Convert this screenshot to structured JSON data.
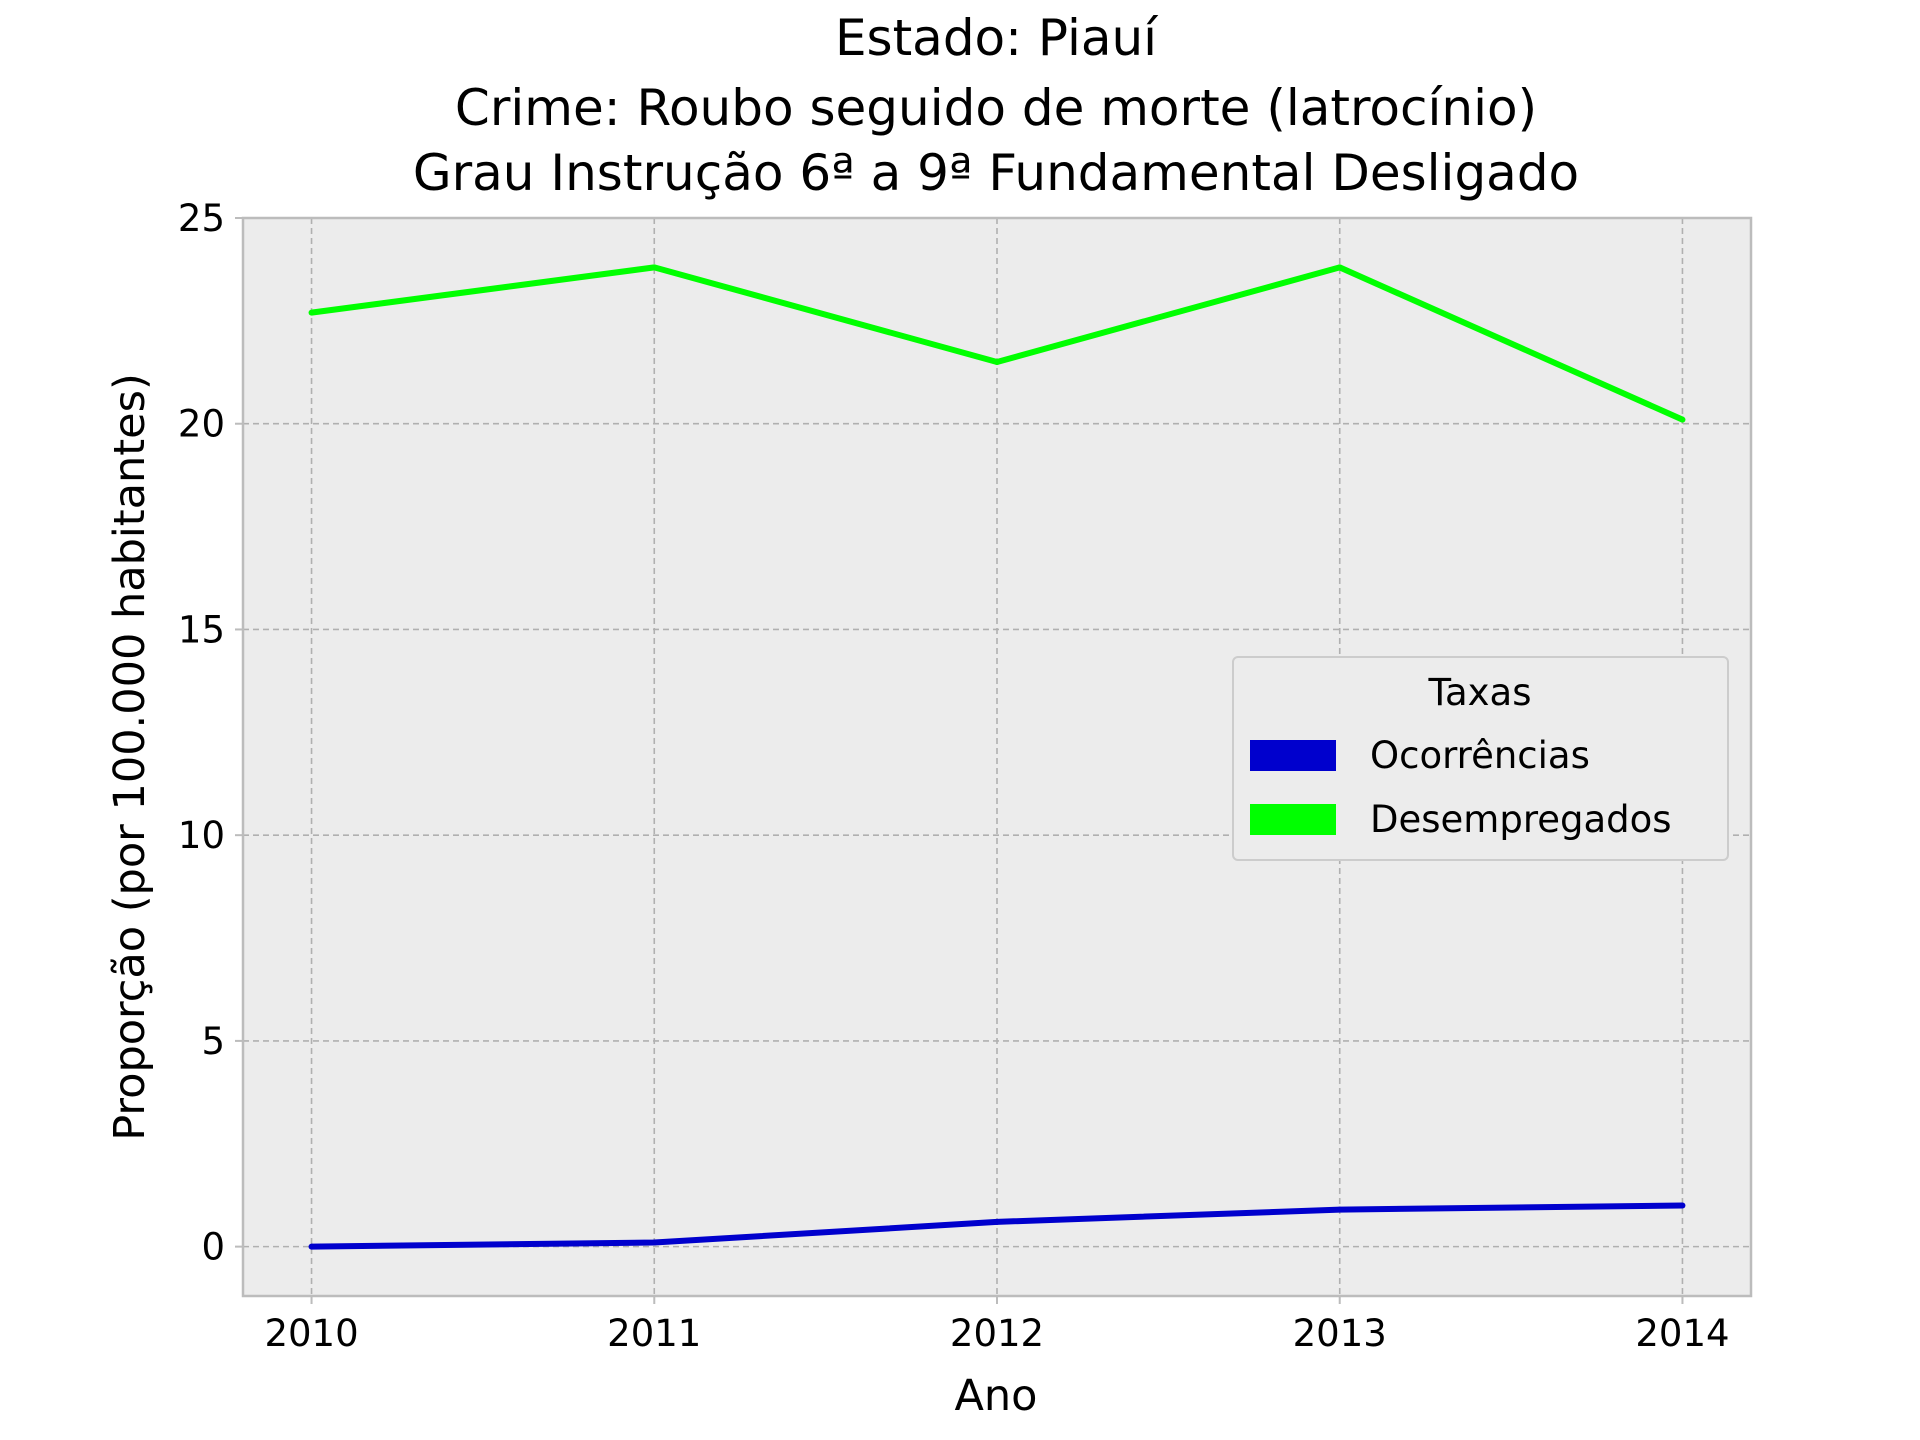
{
  "chart_data": {
    "type": "line",
    "title_lines": [
      "Estado: Piauí",
      "Crime: Roubo seguido de morte (latrocínio)",
      "Grau Instrução  6ª a 9ª Fundamental   Desligado"
    ],
    "xlabel": "Ano",
    "ylabel": "Proporção (por 100.000 habitantes)",
    "x": [
      2010,
      2011,
      2012,
      2013,
      2014
    ],
    "x_tick_labels": [
      "2010",
      "2011",
      "2012",
      "2013",
      "2014"
    ],
    "y_ticks": [
      0,
      5,
      10,
      15,
      20,
      25
    ],
    "y_tick_labels": [
      "0",
      "5",
      "10",
      "15",
      "20",
      "25"
    ],
    "xlim": [
      2009.8,
      2014.2
    ],
    "ylim": [
      -1.2,
      25
    ],
    "grid": true,
    "legend": {
      "title": "Taxas",
      "placement": "center-right"
    },
    "series": [
      {
        "name": "Ocorrências",
        "color": "#0000cd",
        "values": [
          0.0,
          0.1,
          0.6,
          0.9,
          1.0
        ]
      },
      {
        "name": "Desempregados",
        "color": "#00ff00",
        "values": [
          22.7,
          23.8,
          21.5,
          23.8,
          20.1
        ]
      }
    ]
  }
}
